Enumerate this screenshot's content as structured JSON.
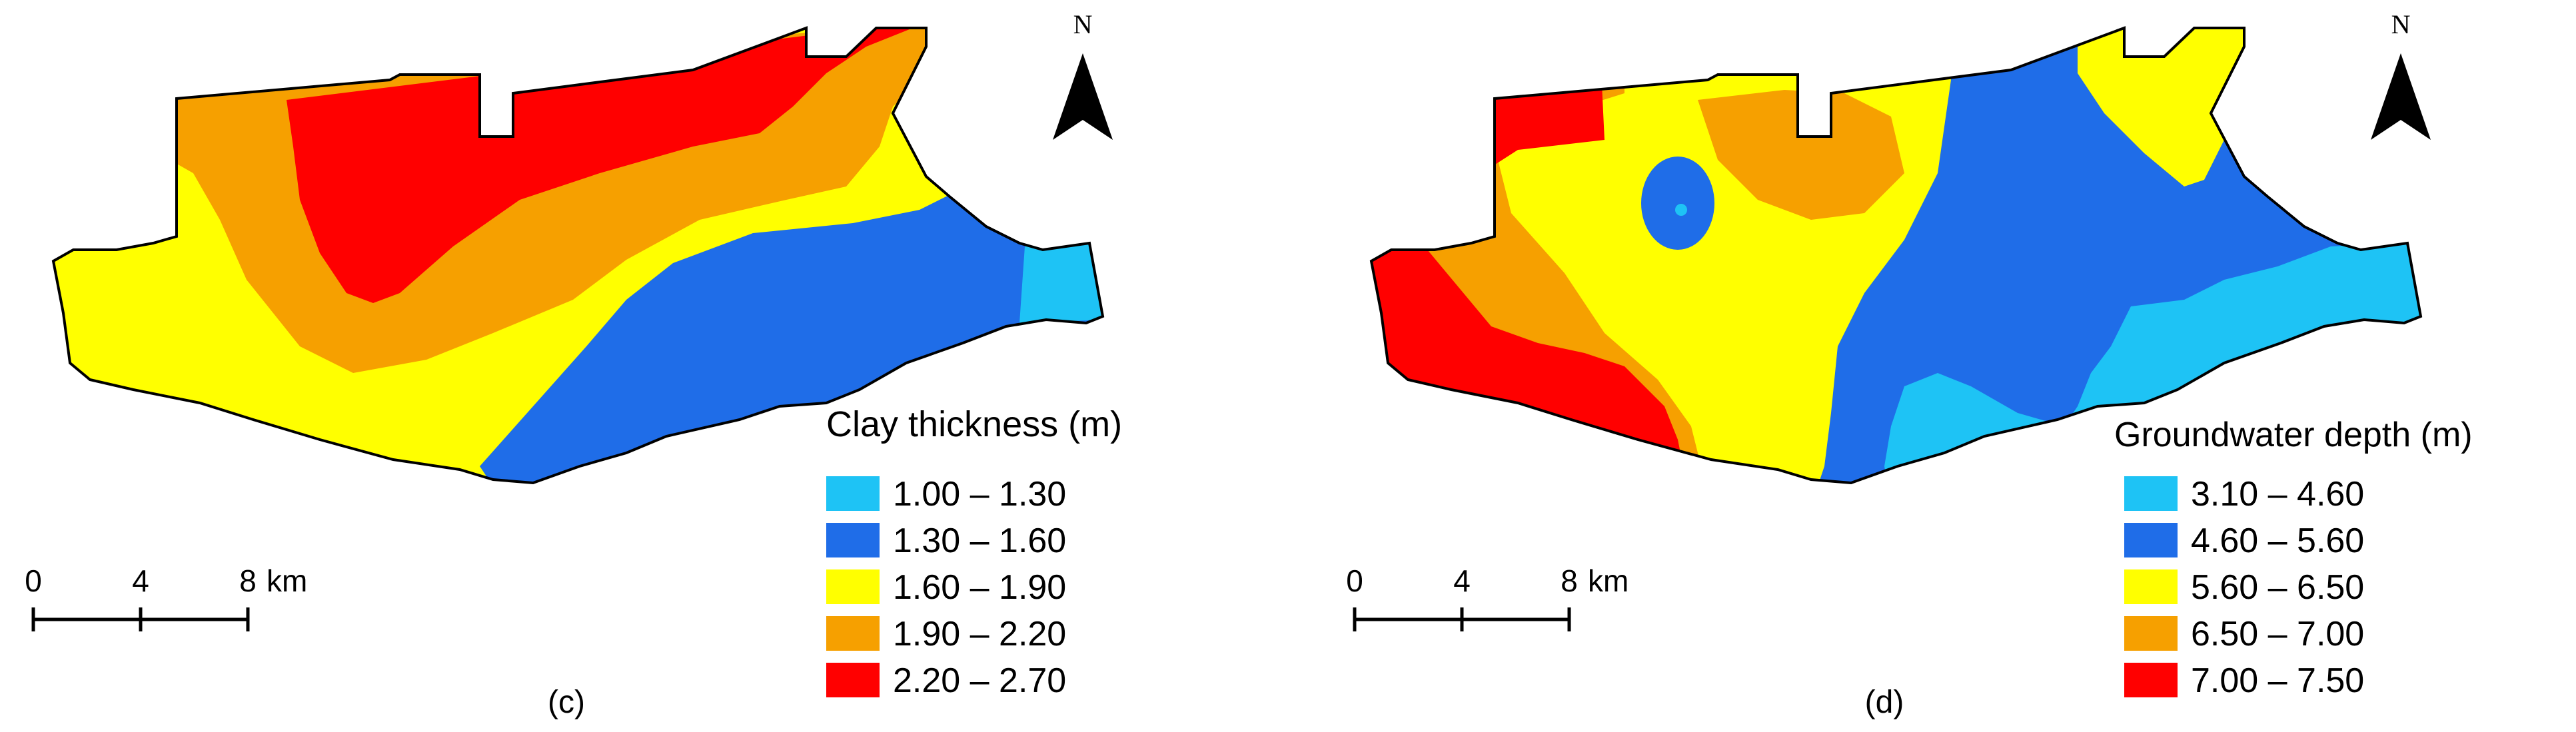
{
  "panels": [
    {
      "id": "c",
      "caption": "(c)",
      "legend": {
        "title": "Clay thickness (m)",
        "classes": [
          {
            "label": "1.00 – 1.30",
            "color": "#1EC3F5"
          },
          {
            "label": "1.30 – 1.60",
            "color": "#1F6DE8"
          },
          {
            "label": "1.60 – 1.90",
            "color": "#FFFF00"
          },
          {
            "label": "1.90 – 2.20",
            "color": "#F6A000"
          },
          {
            "label": "2.20 – 2.70",
            "color": "#FF0000"
          }
        ]
      },
      "north": "N",
      "scale_bar": {
        "ticks": [
          "0",
          "4",
          "8"
        ],
        "unit": "km"
      }
    },
    {
      "id": "d",
      "caption": "(d)",
      "legend": {
        "title": "Groundwater depth (m)",
        "classes": [
          {
            "label": "3.10 – 4.60",
            "color": "#1EC3F5"
          },
          {
            "label": "4.60 – 5.60",
            "color": "#1F6DE8"
          },
          {
            "label": "5.60 – 6.50",
            "color": "#FFFF00"
          },
          {
            "label": "6.50 – 7.00",
            "color": "#F6A000"
          },
          {
            "label": "7.00 – 7.50",
            "color": "#FF0000"
          }
        ]
      },
      "north": "N",
      "scale_bar": {
        "ticks": [
          "0",
          "4",
          "8"
        ],
        "unit": "km"
      }
    }
  ]
}
